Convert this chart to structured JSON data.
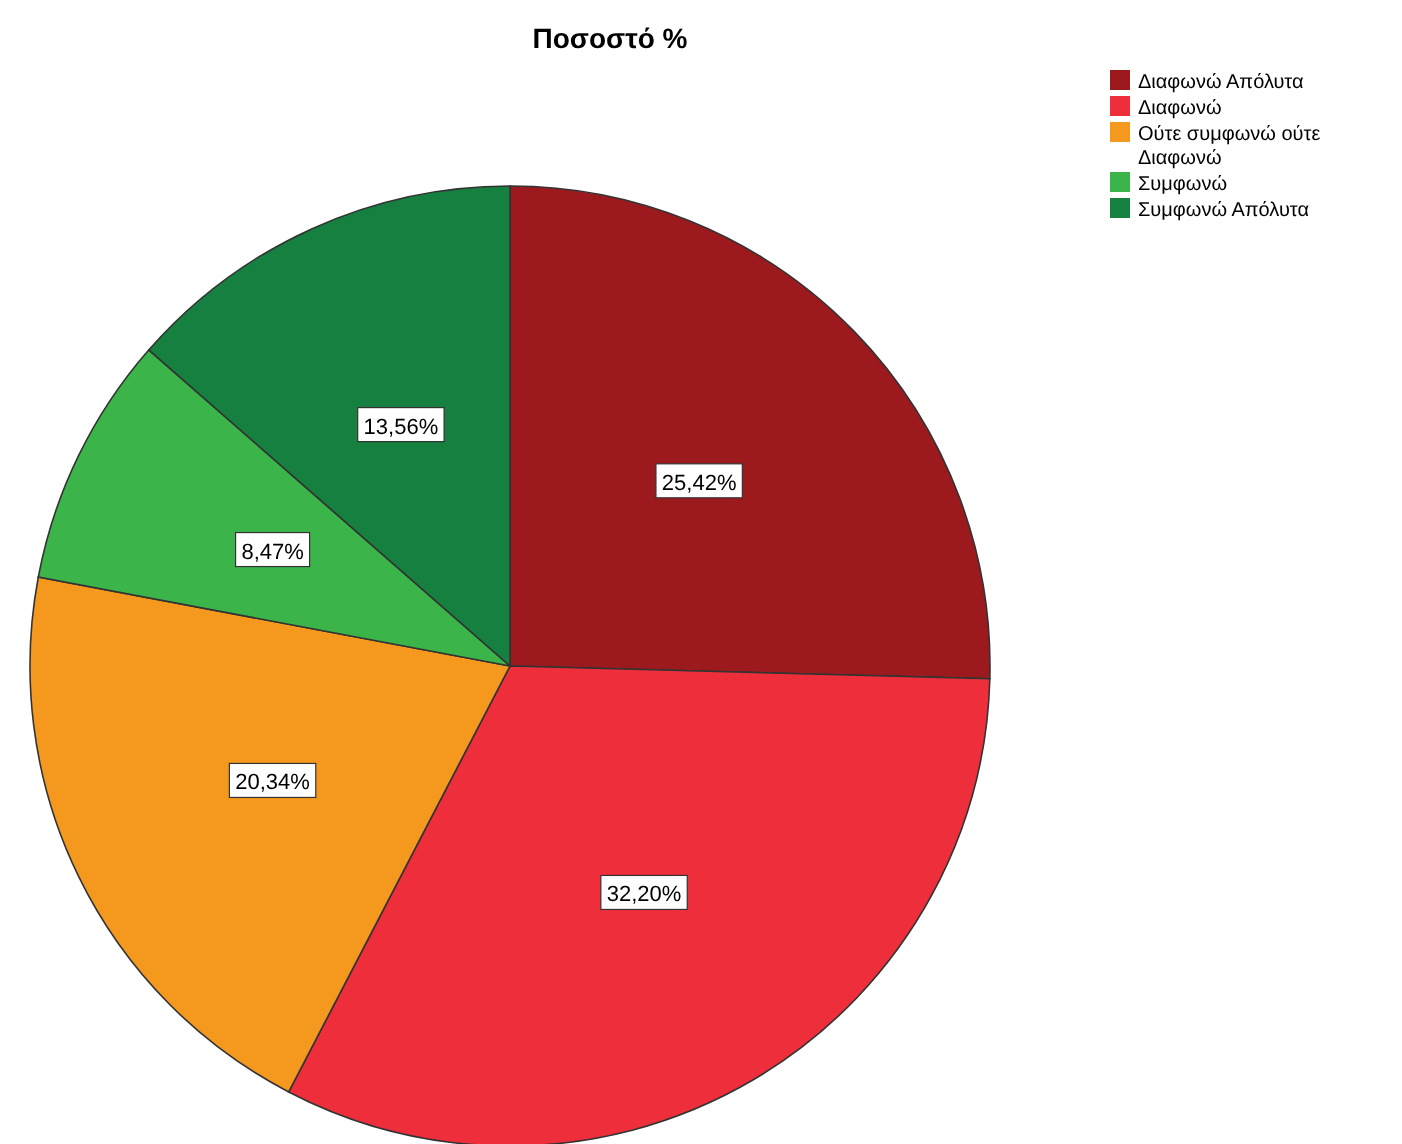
{
  "chart_data": {
    "type": "pie",
    "title": "Ποσοστό %",
    "categories": [
      "Διαφωνώ Απόλυτα",
      "Διαφωνώ",
      "Ούτε συμφωνώ ούτε Διαφωνώ",
      "Συμφωνώ",
      "Συμφωνώ Απόλυτα"
    ],
    "values": [
      25.42,
      32.2,
      20.34,
      8.47,
      13.56
    ],
    "value_labels": [
      "25,42%",
      "32,20%",
      "20,34%",
      "8,47%",
      "13,56%"
    ],
    "colors": [
      "#9c1a1e",
      "#ee2f3b",
      "#f5991e",
      "#3bb54a",
      "#15803f"
    ],
    "legend": "top right"
  }
}
